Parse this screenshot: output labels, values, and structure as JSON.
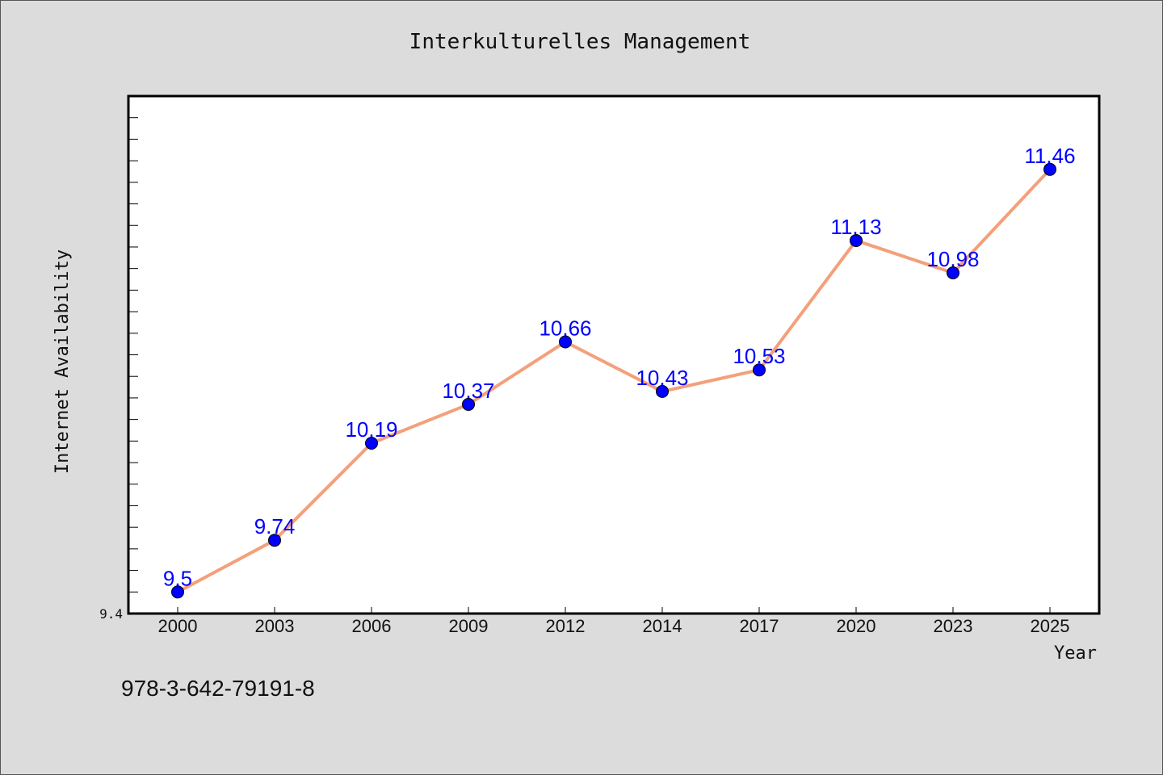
{
  "chart_data": {
    "type": "line",
    "title": "Interkulturelles Management",
    "xlabel": "Year",
    "ylabel": "Internet Availability",
    "categories": [
      "2000",
      "2003",
      "2006",
      "2009",
      "2012",
      "2014",
      "2017",
      "2020",
      "2023",
      "2025"
    ],
    "series": [
      {
        "values": [
          9.5,
          9.74,
          10.19,
          10.37,
          10.66,
          10.43,
          10.53,
          11.13,
          10.98,
          11.46
        ]
      }
    ],
    "data_labels": [
      "9.5",
      "9.74",
      "10.19",
      "10.37",
      "10.66",
      "10.43",
      "10.53",
      "11.13",
      "10.98",
      "11.46"
    ],
    "ylim": [
      9.4,
      11.8
    ],
    "y_tick_label": "9.4",
    "grid": false,
    "colors": {
      "line": "#f4a07a",
      "marker": "#0000ff",
      "label": "#0000ff",
      "background": "#dcdcdc",
      "plot_bg": "#ffffff"
    }
  },
  "footer": {
    "isbn": "978-3-642-79191-8"
  }
}
